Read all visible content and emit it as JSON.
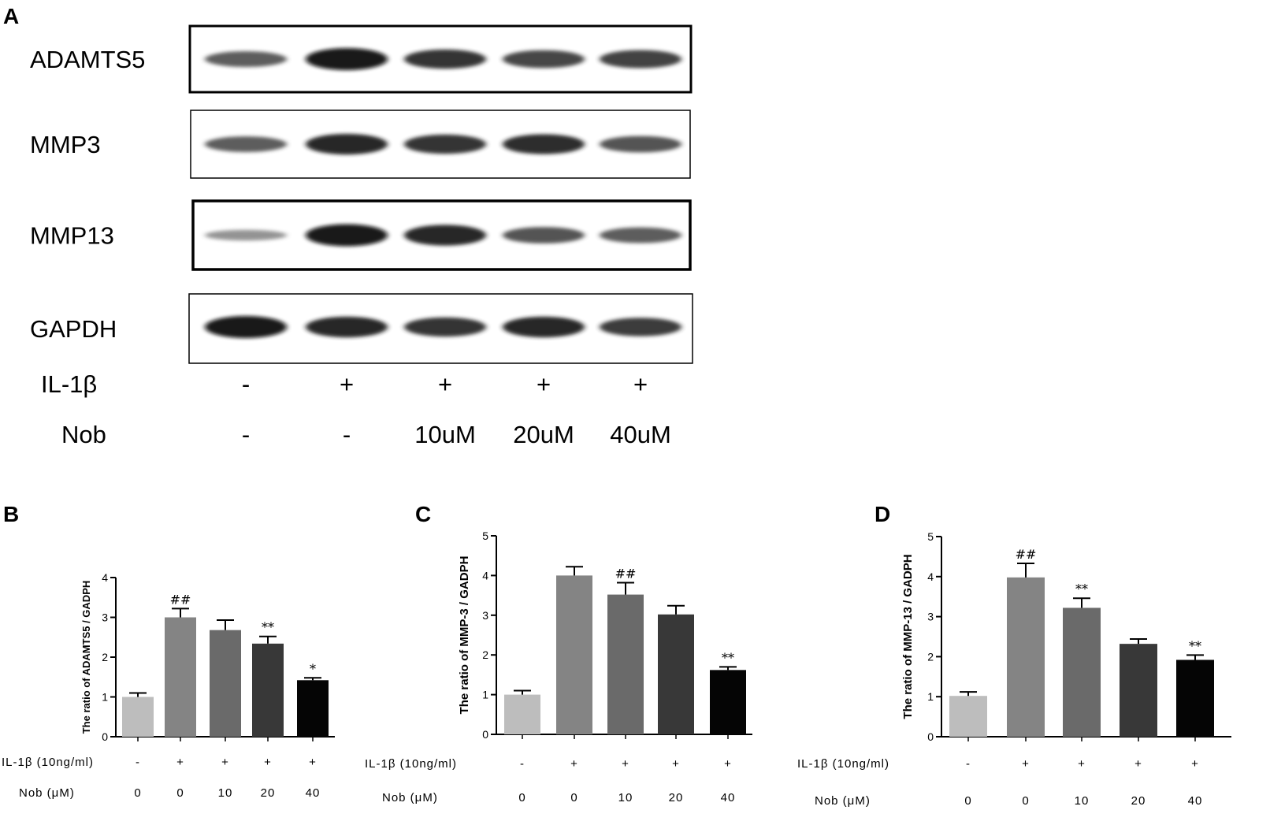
{
  "panel_a": {
    "label": "A",
    "blots": [
      {
        "name": "ADAMTS5",
        "bands": [
          0.55,
          1.0,
          0.8,
          0.7,
          0.72
        ]
      },
      {
        "name": "MMP3",
        "bands": [
          0.55,
          0.9,
          0.8,
          0.85,
          0.6
        ]
      },
      {
        "name": "MMP13",
        "bands": [
          0.2,
          1.0,
          0.9,
          0.6,
          0.55
        ]
      },
      {
        "name": "GAPDH",
        "bands": [
          1.0,
          0.9,
          0.8,
          0.9,
          0.75
        ]
      }
    ],
    "rows": [
      {
        "label": "IL-1β",
        "values": [
          "-",
          "+",
          "+",
          "+",
          "+"
        ]
      },
      {
        "label": "Nob",
        "values": [
          "-",
          "-",
          "10uM",
          "20uM",
          "40uM"
        ]
      }
    ]
  },
  "chart_data": [
    {
      "panel": "B",
      "type": "bar",
      "ylabel": "The ratio of ADAMTS5 / GADPH",
      "ylim": [
        0,
        4
      ],
      "yticks": [
        "0",
        "1",
        "2",
        "3",
        "4"
      ],
      "values": [
        1.0,
        3.0,
        2.68,
        2.34,
        1.42
      ],
      "errors": [
        0.1,
        0.22,
        0.25,
        0.18,
        0.06
      ],
      "annotations": [
        "",
        "##",
        "",
        "**",
        "*"
      ],
      "colors": [
        "#bdbdbd",
        "#848484",
        "#6a6a6a",
        "#383838",
        "#050505"
      ],
      "conditions": [
        {
          "label": "IL-1β (10ng/ml)",
          "values": [
            "-",
            "+",
            "+",
            "+",
            "+"
          ]
        },
        {
          "label": "Nob (μM)",
          "values": [
            "0",
            "0",
            "10",
            "20",
            "40"
          ]
        }
      ]
    },
    {
      "panel": "C",
      "type": "bar",
      "ylabel": "The ratio of MMP-3 / GADPH",
      "ylim": [
        0,
        5
      ],
      "yticks": [
        "0",
        "1",
        "2",
        "3",
        "4",
        "5"
      ],
      "values": [
        1.0,
        4.0,
        3.52,
        3.02,
        1.62
      ],
      "errors": [
        0.1,
        0.22,
        0.3,
        0.22,
        0.08
      ],
      "annotations": [
        "",
        "",
        "##",
        "",
        "**"
      ],
      "colors": [
        "#bdbdbd",
        "#848484",
        "#6a6a6a",
        "#383838",
        "#050505"
      ],
      "conditions": [
        {
          "label": "IL-1β (10ng/ml)",
          "values": [
            "-",
            "+",
            "+",
            "+",
            "+"
          ]
        },
        {
          "label": "Nob (μM)",
          "values": [
            "0",
            "0",
            "10",
            "20",
            "40"
          ]
        }
      ]
    },
    {
      "panel": "D",
      "type": "bar",
      "ylabel": "The ratio of MMP-13 / GADPH",
      "ylim": [
        0,
        5
      ],
      "yticks": [
        "0",
        "1",
        "2",
        "3",
        "4",
        "5"
      ],
      "values": [
        1.02,
        3.98,
        3.22,
        2.32,
        1.92
      ],
      "errors": [
        0.1,
        0.35,
        0.24,
        0.12,
        0.12
      ],
      "annotations": [
        "",
        "##",
        "**",
        "",
        "**"
      ],
      "colors": [
        "#bdbdbd",
        "#848484",
        "#6a6a6a",
        "#383838",
        "#050505"
      ],
      "conditions": [
        {
          "label": "IL-1β (10ng/ml)",
          "values": [
            "-",
            "+",
            "+",
            "+",
            "+"
          ]
        },
        {
          "label": "Nob (μM)",
          "values": [
            "0",
            "0",
            "10",
            "20",
            "40"
          ]
        }
      ]
    }
  ]
}
